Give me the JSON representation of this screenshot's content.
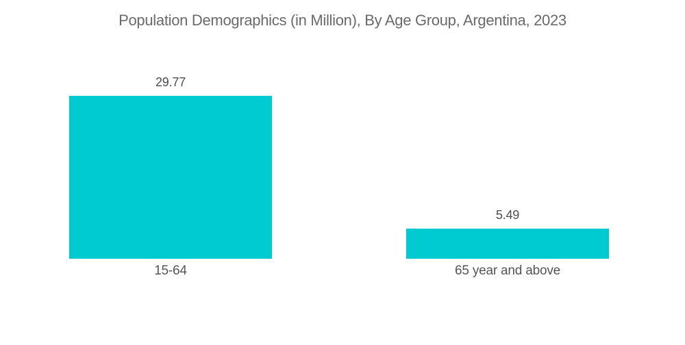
{
  "chart_data": {
    "type": "bar",
    "title": "Population Demographics (in Million), By Age Group, Argentina, 2023",
    "categories": [
      "15-64",
      "65 year and above"
    ],
    "values": [
      29.77,
      5.49
    ],
    "value_labels": [
      "29.77",
      "5.49"
    ],
    "xlabel": "",
    "ylabel": "",
    "ylim": [
      0,
      30
    ],
    "grid": false,
    "legend": false,
    "axes_visible": false,
    "bar_color": "#00CBD1",
    "title_color": "#6a6a6a",
    "value_label_color": "#4d4d4d",
    "category_label_color": "#545454",
    "background_color": "#ffffff"
  }
}
